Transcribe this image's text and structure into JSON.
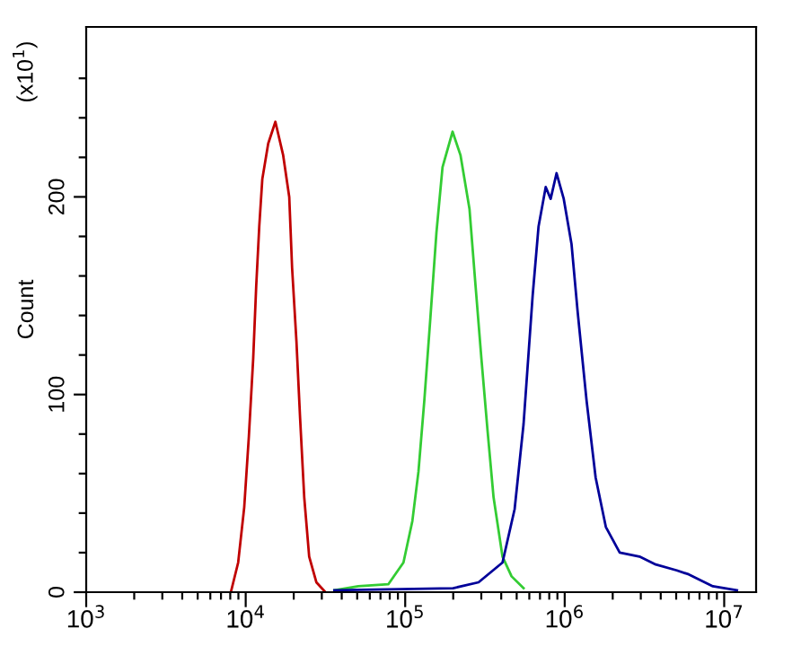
{
  "chart_data": {
    "type": "line",
    "ylabel": "Count",
    "annotations": [
      "(x10$^{1}$)"
    ],
    "log": "x",
    "grid": false,
    "marker": "none",
    "line_style": "solid",
    "xlim": [
      1000,
      15850000
    ],
    "ylim": [
      0,
      286
    ],
    "xticks": [
      {
        "value": 1000,
        "label": "10$^{3}$"
      },
      {
        "value": 2000,
        "label": null
      },
      {
        "value": 3000,
        "label": null
      },
      {
        "value": 4000,
        "label": null
      },
      {
        "value": 5000,
        "label": null
      },
      {
        "value": 6000,
        "label": null
      },
      {
        "value": 7000,
        "label": null
      },
      {
        "value": 8000,
        "label": null
      },
      {
        "value": 9000,
        "label": null
      },
      {
        "value": 10000,
        "label": "10$^{4}$"
      },
      {
        "value": 20000,
        "label": null
      },
      {
        "value": 30000,
        "label": null
      },
      {
        "value": 40000,
        "label": null
      },
      {
        "value": 50000,
        "label": null
      },
      {
        "value": 60000,
        "label": null
      },
      {
        "value": 70000,
        "label": null
      },
      {
        "value": 80000,
        "label": null
      },
      {
        "value": 90000,
        "label": null
      },
      {
        "value": 100000,
        "label": "10$^{5}$"
      },
      {
        "value": 200000,
        "label": null
      },
      {
        "value": 300000,
        "label": null
      },
      {
        "value": 400000,
        "label": null
      },
      {
        "value": 500000,
        "label": null
      },
      {
        "value": 600000,
        "label": null
      },
      {
        "value": 700000,
        "label": null
      },
      {
        "value": 800000,
        "label": null
      },
      {
        "value": 900000,
        "label": null
      },
      {
        "value": 1000000,
        "label": "10$^{6}$"
      },
      {
        "value": 2000000,
        "label": null
      },
      {
        "value": 3000000,
        "label": null
      },
      {
        "value": 4000000,
        "label": null
      },
      {
        "value": 5000000,
        "label": null
      },
      {
        "value": 6000000,
        "label": null
      },
      {
        "value": 7000000,
        "label": null
      },
      {
        "value": 8000000,
        "label": null
      },
      {
        "value": 9000000,
        "label": null
      },
      {
        "value": 10000000,
        "label": "10$^{7}$"
      }
    ],
    "yticks": [
      0,
      {
        "value": 20,
        "label": null
      },
      {
        "value": 40,
        "label": null
      },
      {
        "value": 60,
        "label": null
      },
      {
        "value": 80,
        "label": null
      },
      100,
      {
        "value": 120,
        "label": null
      },
      {
        "value": 140,
        "label": null
      },
      {
        "value": 160,
        "label": null
      },
      {
        "value": 180,
        "label": null
      },
      200,
      {
        "value": 220,
        "label": null
      },
      {
        "value": 240,
        "label": null
      },
      {
        "value": 260,
        "label": null
      }
    ],
    "series": [
      {
        "color": "#c00000",
        "x": [
          8070,
          8970,
          9790,
          10470,
          11140,
          11640,
          12160,
          12710,
          13840,
          15350,
          17180,
          18750,
          19540,
          20800,
          21930,
          23280,
          25000,
          27730,
          31620
        ],
        "values": [
          0,
          15,
          43,
          79,
          118,
          155,
          185,
          209,
          227,
          238,
          221,
          200,
          164,
          127,
          88,
          48,
          18,
          5,
          0
        ]
      },
      {
        "color": "#33cc33",
        "x": [
          35970,
          50820,
          78340,
          97500,
          110900,
          121100,
          131800,
          143900,
          157000,
          171400,
          198200,
          222300,
          252900,
          276100,
          300600,
          328100,
          358100,
          407400,
          464500,
          552100
        ],
        "values": [
          1,
          3,
          4,
          15,
          36,
          61,
          97,
          139,
          182,
          215,
          233,
          221,
          194,
          155,
          118,
          82,
          48,
          18,
          8,
          2
        ]
      },
      {
        "color": "#000099",
        "x": [
          35970,
          199500,
          288400,
          407400,
          485300,
          552100,
          629500,
          685500,
          760300,
          816600,
          889200,
          986300,
          1104000,
          1205000,
          1371000,
          1563000,
          1811000,
          2213000,
          2944000,
          3724000,
          5047000,
          5998000,
          8492000,
          12020000
        ],
        "values": [
          1,
          2,
          5,
          15,
          42,
          85,
          150,
          185,
          205,
          199,
          212,
          199,
          176,
          142,
          97,
          58,
          33,
          20,
          18,
          14,
          11,
          9,
          3,
          1
        ]
      }
    ]
  }
}
